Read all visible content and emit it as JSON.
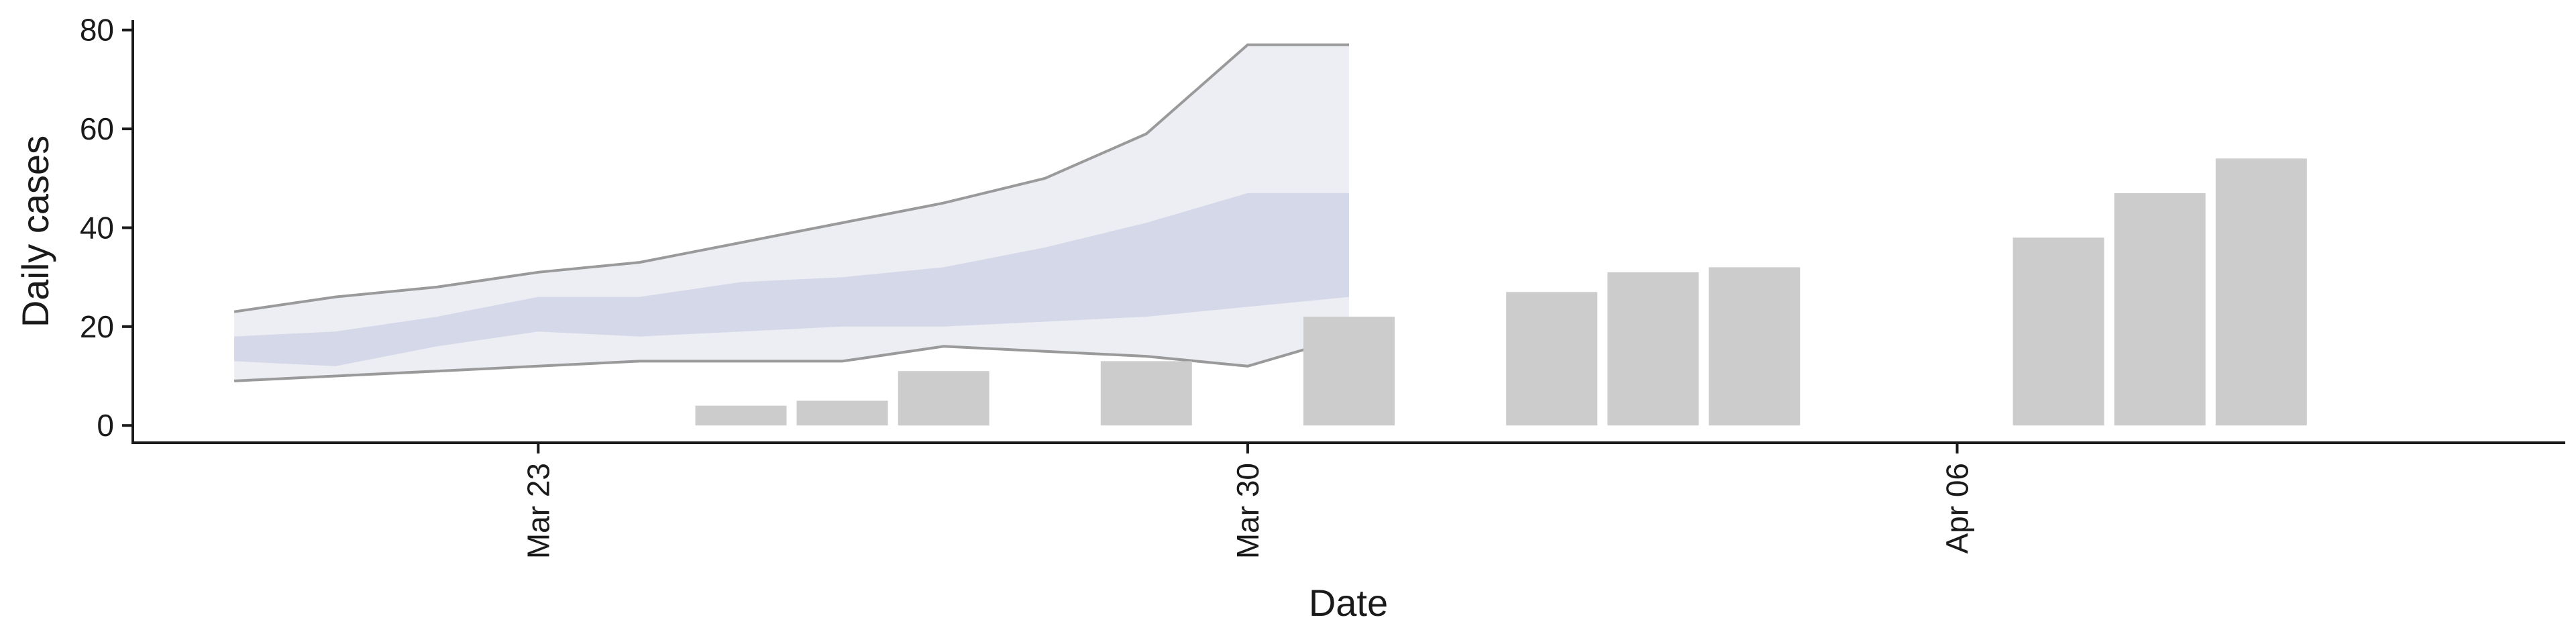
{
  "chart_data": {
    "type": "bar",
    "title": "",
    "xlabel": "Date",
    "ylabel": "Daily cases",
    "xlim": [
      "2020-03-19",
      "2020-04-12"
    ],
    "ylim": [
      -3.5,
      82
    ],
    "yticks": [
      0,
      20,
      40,
      60,
      80
    ],
    "xticks": [
      {
        "date": "2020-03-23",
        "label": "Mar 23"
      },
      {
        "date": "2020-03-30",
        "label": "Mar 30"
      },
      {
        "date": "2020-04-06",
        "label": "Apr 06"
      }
    ],
    "grid": false,
    "legend": "none",
    "colors": {
      "bars": "#cccccc",
      "band_outer": "#e6e8f0",
      "band_inner": "#c5cadf",
      "band_line": "#9a9a9a"
    },
    "bars": [
      {
        "date": "2020-03-25",
        "value": 4
      },
      {
        "date": "2020-03-26",
        "value": 5
      },
      {
        "date": "2020-03-27",
        "value": 11
      },
      {
        "date": "2020-03-29",
        "value": 13
      },
      {
        "date": "2020-03-31",
        "value": 22
      },
      {
        "date": "2020-04-02",
        "value": 27
      },
      {
        "date": "2020-04-03",
        "value": 31
      },
      {
        "date": "2020-04-04",
        "value": 32
      },
      {
        "date": "2020-04-07",
        "value": 38
      },
      {
        "date": "2020-04-08",
        "value": 47
      },
      {
        "date": "2020-04-09",
        "value": 54
      }
    ],
    "forecast_band": {
      "dates": [
        "2020-03-20",
        "2020-03-21",
        "2020-03-22",
        "2020-03-23",
        "2020-03-24",
        "2020-03-25",
        "2020-03-26",
        "2020-03-27",
        "2020-03-28",
        "2020-03-29",
        "2020-03-30",
        "2020-03-31"
      ],
      "lower_outer": [
        9,
        10,
        11,
        12,
        13,
        13,
        13,
        16,
        15,
        14,
        12,
        18
      ],
      "lower_inner": [
        13,
        12,
        16,
        19,
        18,
        19,
        20,
        20,
        21,
        22,
        24,
        26
      ],
      "upper_inner": [
        18,
        19,
        22,
        26,
        26,
        29,
        30,
        32,
        36,
        41,
        47,
        47
      ],
      "upper_outer": [
        23,
        26,
        28,
        31,
        33,
        37,
        41,
        45,
        50,
        59,
        77,
        77
      ]
    }
  }
}
